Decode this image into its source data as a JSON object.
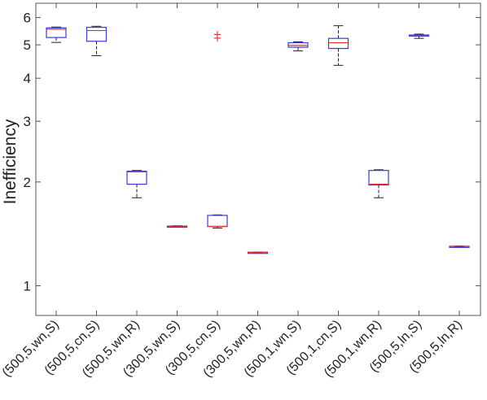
{
  "chart_data": {
    "type": "box",
    "ylabel": "Inefficiency",
    "yscale": "log",
    "ylim": [
      0.82,
      6.6
    ],
    "yticks": [
      1,
      2,
      3,
      4,
      5,
      6
    ],
    "ytick_labels": [
      "1",
      "2",
      "3",
      "4",
      "5",
      "6"
    ],
    "grid": false,
    "categories": [
      "(500,5,wn,S)",
      "(500,5,cn,S)",
      "(500,5,wn,R)",
      "(300,5,wn,S)",
      "(300,5,cn,S)",
      "(300,5,wn,R)",
      "(500,1,wn,S)",
      "(500,1,cn,S)",
      "(500,1,wn,R)",
      "(500,5,ln,S)",
      "(500,5,ln,R)"
    ],
    "boxes": [
      {
        "whisker_low": 5.08,
        "q1": 5.25,
        "median": 5.55,
        "q3": 5.6,
        "whisker_high": 5.63,
        "outliers": []
      },
      {
        "whisker_low": 4.65,
        "q1": 5.12,
        "median": 5.5,
        "q3": 5.62,
        "whisker_high": 5.66,
        "outliers": []
      },
      {
        "whisker_low": 1.8,
        "q1": 1.97,
        "median": 2.14,
        "q3": 2.15,
        "whisker_high": 2.16,
        "outliers": []
      },
      {
        "whisker_low": 1.48,
        "q1": 1.483,
        "median": 1.487,
        "q3": 1.49,
        "whisker_high": 1.493,
        "outliers": []
      },
      {
        "whisker_low": 1.47,
        "q1": 1.485,
        "median": 1.487,
        "q3": 1.6,
        "whisker_high": 1.605,
        "outliers": [
          5.26,
          5.38
        ]
      },
      {
        "whisker_low": 1.247,
        "q1": 1.249,
        "median": 1.25,
        "q3": 1.251,
        "whisker_high": 1.253,
        "outliers": []
      },
      {
        "whisker_low": 4.8,
        "q1": 4.92,
        "median": 4.98,
        "q3": 5.07,
        "whisker_high": 5.1,
        "outliers": []
      },
      {
        "whisker_low": 4.36,
        "q1": 4.88,
        "median": 5.07,
        "q3": 5.22,
        "whisker_high": 5.68,
        "outliers": []
      },
      {
        "whisker_low": 1.8,
        "q1": 1.96,
        "median": 1.97,
        "q3": 2.16,
        "whisker_high": 2.17,
        "outliers": []
      },
      {
        "whisker_low": 5.22,
        "q1": 5.3,
        "median": 5.32,
        "q3": 5.34,
        "whisker_high": 5.37,
        "outliers": []
      },
      {
        "whisker_low": 1.296,
        "q1": 1.299,
        "median": 1.3,
        "q3": 1.302,
        "whisker_high": 1.304,
        "outliers": []
      }
    ],
    "colors": {
      "box": "#3b3bd6",
      "median": "#e0303a",
      "whisker": "#222222",
      "outlier": "#e0303a",
      "axis": "#555555"
    }
  }
}
